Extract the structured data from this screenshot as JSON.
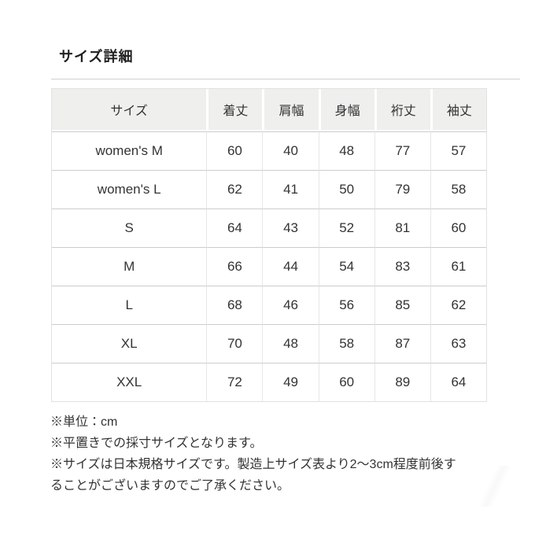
{
  "page": {
    "title": "サイズ詳細"
  },
  "size_table": {
    "columns": [
      "サイズ",
      "着丈",
      "肩幅",
      "身幅",
      "裄丈",
      "袖丈"
    ],
    "rows": [
      [
        "women's M",
        "60",
        "40",
        "48",
        "77",
        "57"
      ],
      [
        "women's L",
        "62",
        "41",
        "50",
        "79",
        "58"
      ],
      [
        "S",
        "64",
        "43",
        "52",
        "81",
        "60"
      ],
      [
        "M",
        "66",
        "44",
        "54",
        "83",
        "61"
      ],
      [
        "L",
        "68",
        "46",
        "56",
        "85",
        "62"
      ],
      [
        "XL",
        "70",
        "48",
        "58",
        "87",
        "63"
      ],
      [
        "XXL",
        "72",
        "49",
        "60",
        "89",
        "64"
      ]
    ]
  },
  "notes": [
    "※単位：cm",
    "※平置きでの採寸サイズとなります。",
    "※サイズは日本規格サイズです。製造上サイズ表より2〜3cm程度前後することがございますのでご了承ください。"
  ],
  "colors": {
    "header_bg": "#efefee",
    "row_bg": "#ffffff",
    "border_strong": "#cccccc",
    "border_light": "#e7e7e7",
    "outer_border": "#e2e2e2",
    "hairline": "#cfcfcf",
    "text": "#333333",
    "title_text": "#1f1f1f"
  }
}
